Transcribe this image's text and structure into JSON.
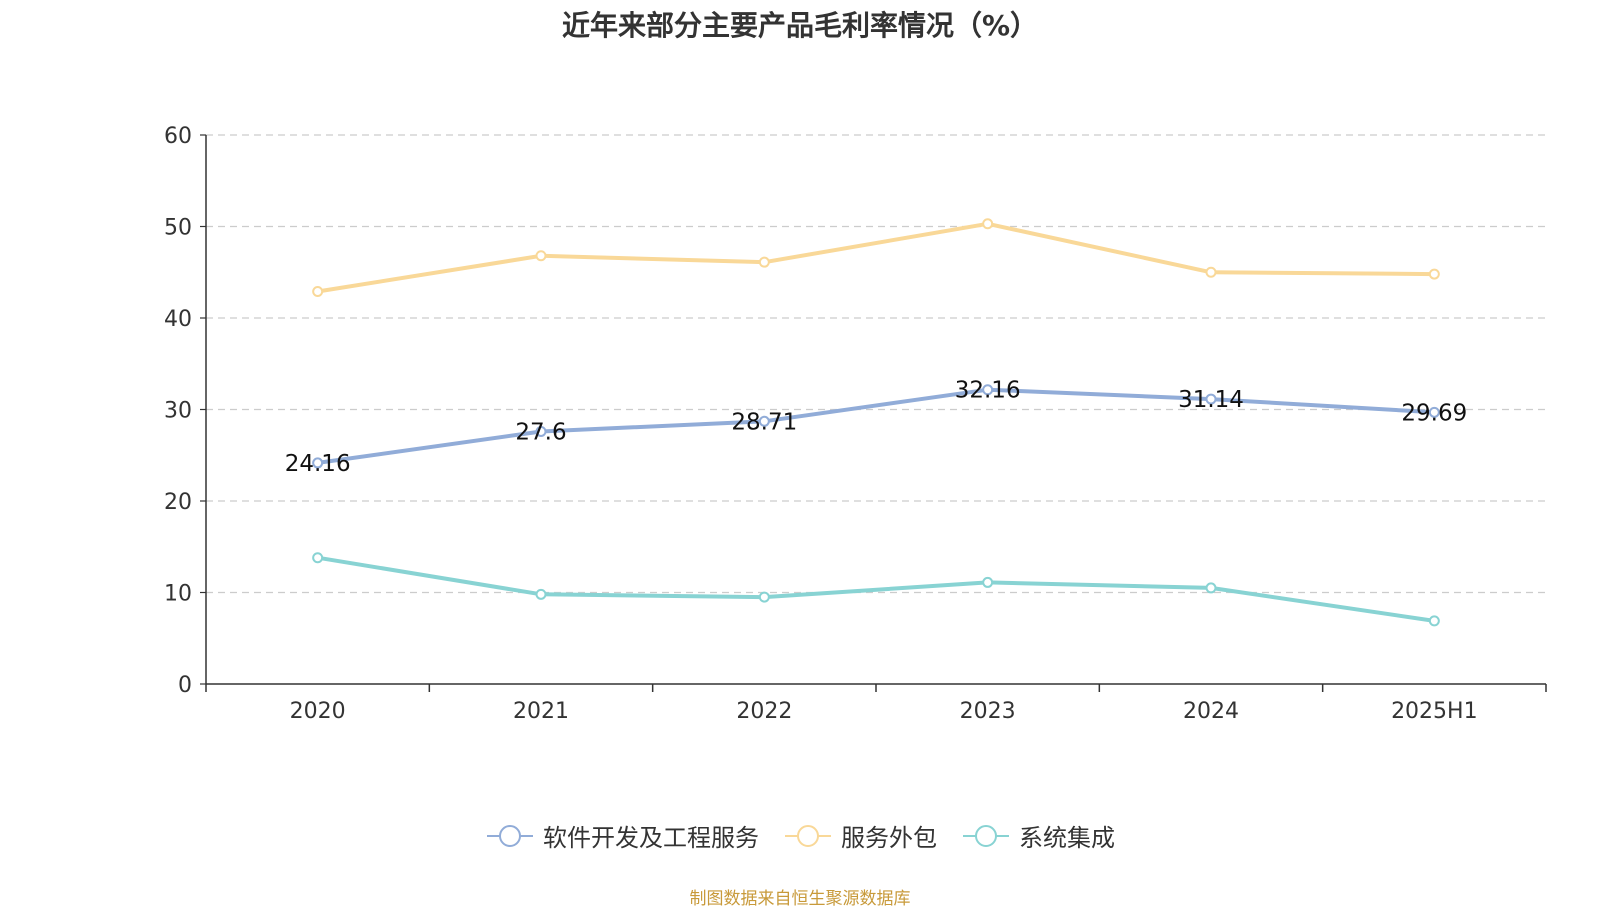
{
  "chart_data": {
    "type": "line",
    "title": "近年来部分主要产品毛利率情况（%）",
    "categories": [
      "2020",
      "2021",
      "2022",
      "2023",
      "2024",
      "2025H1"
    ],
    "ylim": [
      0,
      60
    ],
    "yticks": [
      "0",
      "10",
      "20",
      "30",
      "40",
      "50",
      "60"
    ],
    "grid": true,
    "legend_position": "bottom",
    "series": [
      {
        "name": "软件开发及工程服务",
        "color": "#91acd8",
        "values": [
          24.16,
          27.6,
          28.71,
          32.16,
          31.14,
          29.69
        ],
        "labels": [
          "24.16",
          "27.6",
          "28.71",
          "32.16",
          "31.14",
          "29.69"
        ]
      },
      {
        "name": "服务外包",
        "color": "#f9d898",
        "values": [
          42.9,
          46.8,
          46.1,
          50.3,
          45.0,
          44.8
        ]
      },
      {
        "name": "系统集成",
        "color": "#88d3d3",
        "values": [
          13.8,
          9.8,
          9.5,
          11.1,
          10.5,
          6.9
        ]
      }
    ]
  },
  "source_note": "制图数据来自恒生聚源数据库"
}
